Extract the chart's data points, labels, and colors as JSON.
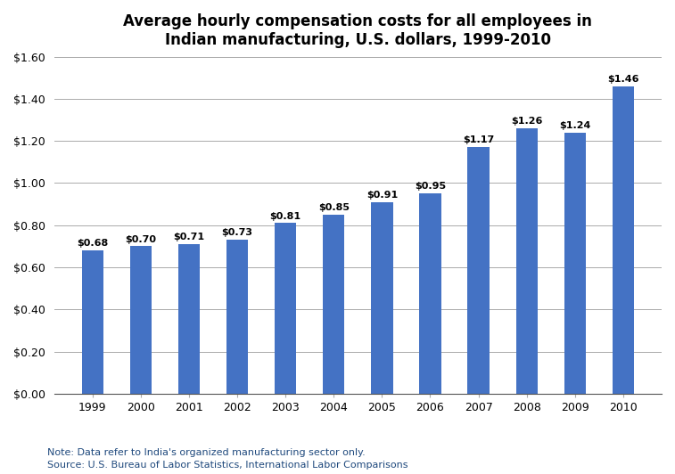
{
  "years": [
    "1999",
    "2000",
    "2001",
    "2002",
    "2003",
    "2004",
    "2005",
    "2006",
    "2007",
    "2008",
    "2009",
    "2010"
  ],
  "values": [
    0.68,
    0.7,
    0.71,
    0.73,
    0.81,
    0.85,
    0.91,
    0.95,
    1.17,
    1.26,
    1.24,
    1.46
  ],
  "bar_color": "#4472C4",
  "title_line1": "Average hourly compensation costs for all employees in",
  "title_line2": "Indian manufacturing, U.S. dollars, 1999-2010",
  "note_line1": "Note: Data refer to India's organized manufacturing sector only.",
  "note_line2": "Source: U.S. Bureau of Labor Statistics, International Labor Comparisons",
  "note_color": "#1F497D",
  "ylim": [
    0.0,
    1.6
  ],
  "yticks": [
    0.0,
    0.2,
    0.4,
    0.6,
    0.8,
    1.0,
    1.2,
    1.4,
    1.6
  ],
  "ytick_labels": [
    "$0.00",
    "$0.20",
    "$0.40",
    "$0.60",
    "$0.80",
    "$1.00",
    "$1.20",
    "$1.40",
    "$1.60"
  ],
  "background_color": "#FFFFFF",
  "title_fontsize": 12,
  "label_fontsize": 8,
  "tick_fontsize": 9,
  "note_fontsize": 8,
  "bar_width": 0.45
}
